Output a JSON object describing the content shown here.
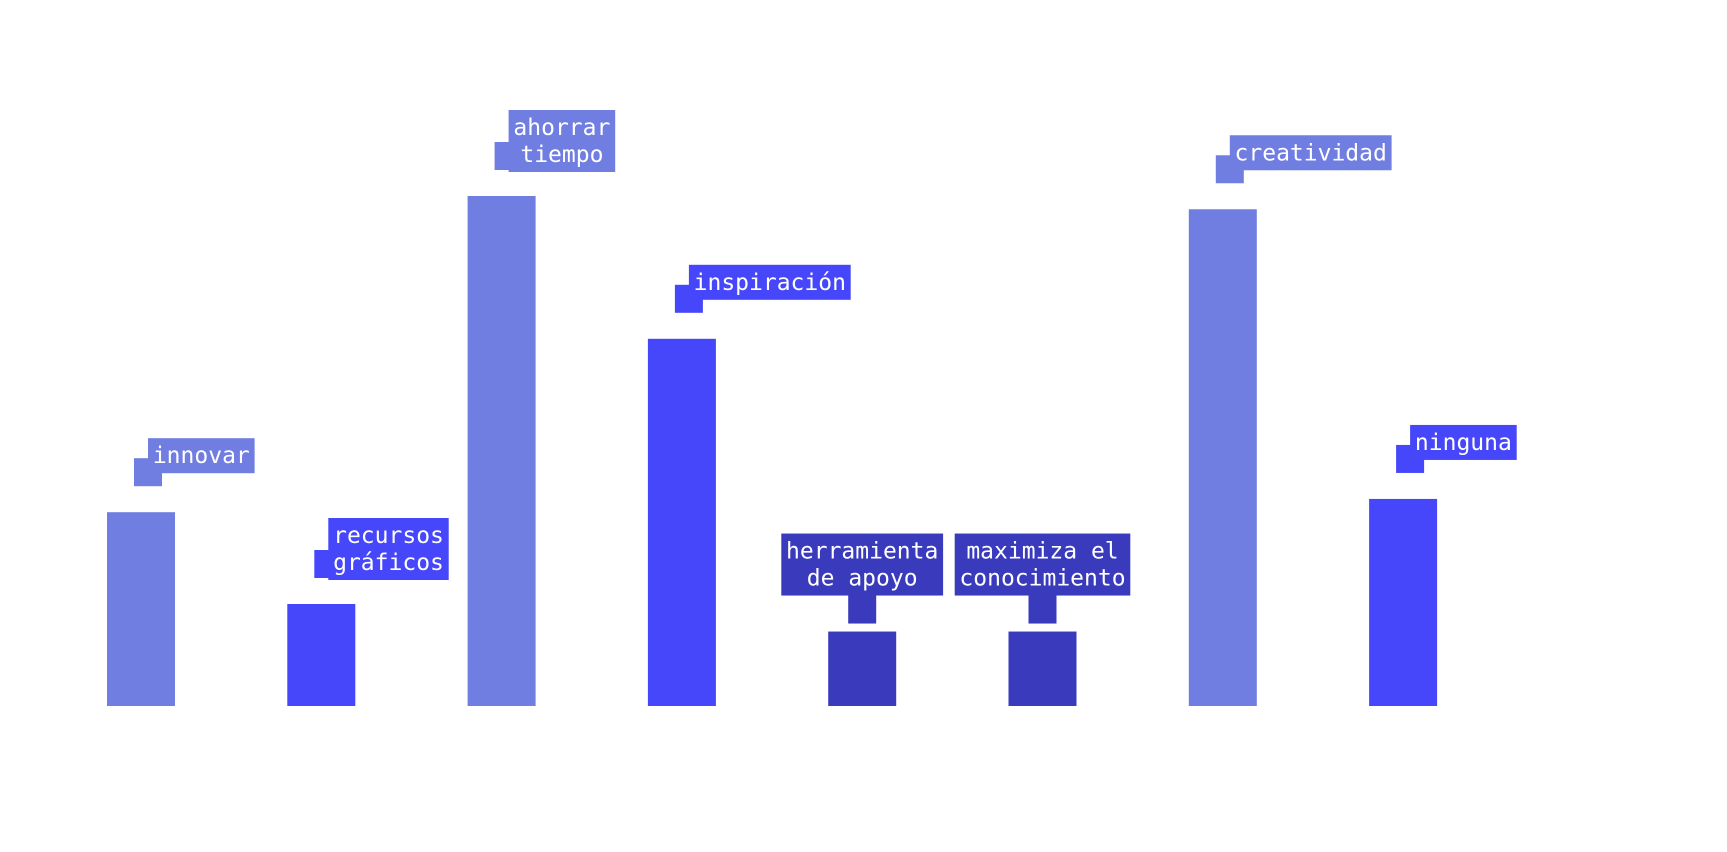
{
  "chart_data": {
    "type": "bar",
    "categories": [
      "innovar",
      "recursos gráficos",
      "ahorrar tiempo",
      "inspiración",
      "herramienta de apoyo",
      "maximiza el conocimiento",
      "creatividad",
      "ninguna"
    ],
    "values": [
      19,
      10,
      50,
      36,
      7.3,
      7.3,
      48.7,
      20.3
    ],
    "labels": [
      [
        "innovar"
      ],
      [
        "recursos",
        "gráficos"
      ],
      [
        "ahorrar",
        "tiempo"
      ],
      [
        "inspiración"
      ],
      [
        "herramienta",
        "de apoyo"
      ],
      [
        "maximiza el",
        "conocimiento"
      ],
      [
        "creatividad"
      ],
      [
        "ninguna"
      ]
    ],
    "label_style": [
      "flag",
      "flag",
      "flag",
      "flag",
      "box",
      "box",
      "flag",
      "flag"
    ],
    "bar_colors": [
      "#707de1",
      "#4646fb",
      "#707de1",
      "#4646fb",
      "#3a3abd",
      "#3a3abd",
      "#707de1",
      "#4646fb"
    ],
    "ylim": [
      0,
      50
    ],
    "grid": false,
    "legend": "none"
  }
}
